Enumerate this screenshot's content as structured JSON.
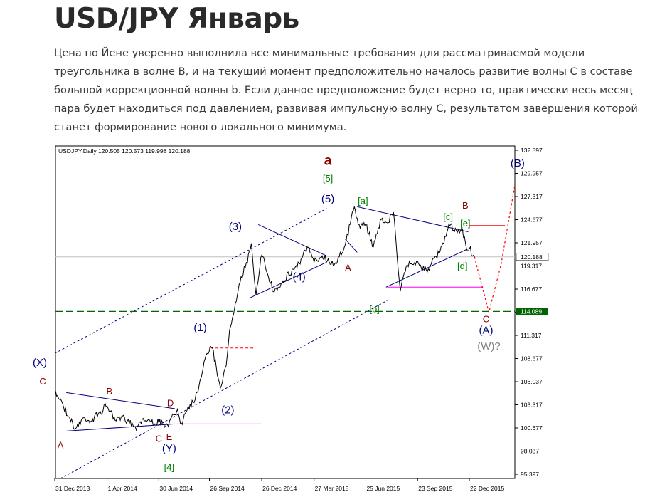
{
  "article": {
    "title": "USD/JPY Январь",
    "paragraph": "Цена по Йене уверенно выполнила все минимальные требования для рассматриваемой модели треугольника в волне В, и на текущий момент предположительно началось развитие волны С в составе большой коррекционной волны b. Если данное предположение будет верно то, практически весь месяц пара будет находиться под давлением, развивая импульсную волну С, результатом завершения которой станет формирование нового локального минимума."
  },
  "chart_data": {
    "type": "line",
    "header": "USDJPY,Daily  120.505 120.573 119.998 120.188",
    "y_ticks": [
      "132.597",
      "129.957",
      "127.317",
      "124.677",
      "121.957",
      "119.317",
      "116.677",
      "114.037",
      "111.317",
      "108.677",
      "106.037",
      "103.317",
      "100.677",
      "98.037",
      "95.397"
    ],
    "ylim": [
      95.397,
      132.597
    ],
    "x_ticks": [
      "31 Dec 2013",
      "1 Apr 2014",
      "30 Jun 2014",
      "26 Sep 2014",
      "26 Dec 2014",
      "27 Mar 2015",
      "25 Jun 2015",
      "23 Sep 2015",
      "22 Dec 2015"
    ],
    "last_price": {
      "label": "120.188",
      "value": 120.188
    },
    "support": {
      "label": "114.089",
      "value": 114.089,
      "color": "#006400"
    },
    "series": [
      {
        "values": [
          {
            "x": "31 Dec 2013",
            "y": 105.0
          },
          {
            "x": "10 Jan 2014",
            "y": 104.3
          },
          {
            "x": "24 Jan 2014",
            "y": 102.3
          },
          {
            "x": "5 Feb 2014",
            "y": 101.0
          },
          {
            "x": "20 Feb 2014",
            "y": 102.2
          },
          {
            "x": "5 Mar 2014",
            "y": 101.8
          },
          {
            "x": "20 Mar 2014",
            "y": 102.9
          },
          {
            "x": "1 Apr 2014",
            "y": 103.5
          },
          {
            "x": "15 Apr 2014",
            "y": 101.9
          },
          {
            "x": "1 May 2014",
            "y": 102.3
          },
          {
            "x": "20 May 2014",
            "y": 101.2
          },
          {
            "x": "1 Jun 2014",
            "y": 102.0
          },
          {
            "x": "15 Jun 2014",
            "y": 101.8
          },
          {
            "x": "30 Jun 2014",
            "y": 101.6
          },
          {
            "x": "15 Jul 2014",
            "y": 101.4
          },
          {
            "x": "31 Jul 2014",
            "y": 102.9
          },
          {
            "x": "8 Aug 2014",
            "y": 101.6
          },
          {
            "x": "20 Aug 2014",
            "y": 103.5
          },
          {
            "x": "1 Sep 2014",
            "y": 104.2
          },
          {
            "x": "10 Sep 2014",
            "y": 106.5
          },
          {
            "x": "20 Sep 2014",
            "y": 109.2
          },
          {
            "x": "1 Oct 2014",
            "y": 110.0
          },
          {
            "x": "15 Oct 2014",
            "y": 105.5
          },
          {
            "x": "25 Oct 2014",
            "y": 108.0
          },
          {
            "x": "31 Oct 2014",
            "y": 112.0
          },
          {
            "x": "10 Nov 2014",
            "y": 115.0
          },
          {
            "x": "20 Nov 2014",
            "y": 118.0
          },
          {
            "x": "1 Dec 2014",
            "y": 119.5
          },
          {
            "x": "8 Dec 2014",
            "y": 121.7
          },
          {
            "x": "16 Dec 2014",
            "y": 115.9
          },
          {
            "x": "26 Dec 2014",
            "y": 120.4
          },
          {
            "x": "15 Jan 2015",
            "y": 116.3
          },
          {
            "x": "1 Feb 2015",
            "y": 117.5
          },
          {
            "x": "1 Mar 2015",
            "y": 119.5
          },
          {
            "x": "15 Mar 2015",
            "y": 121.3
          },
          {
            "x": "27 Mar 2015",
            "y": 119.6
          },
          {
            "x": "10 Apr 2015",
            "y": 120.3
          },
          {
            "x": "1 May 2015",
            "y": 119.3
          },
          {
            "x": "20 May 2015",
            "y": 121.5
          },
          {
            "x": "5 Jun 2015",
            "y": 125.8
          },
          {
            "x": "15 Jun 2015",
            "y": 123.4
          },
          {
            "x": "25 Jun 2015",
            "y": 123.9
          },
          {
            "x": "8 Jul 2015",
            "y": 121.3
          },
          {
            "x": "20 Jul 2015",
            "y": 124.3
          },
          {
            "x": "1 Aug 2015",
            "y": 124.0
          },
          {
            "x": "12 Aug 2015",
            "y": 125.2
          },
          {
            "x": "24 Aug 2015",
            "y": 116.4
          },
          {
            "x": "5 Sep 2015",
            "y": 119.3
          },
          {
            "x": "23 Sep 2015",
            "y": 119.7
          },
          {
            "x": "5 Oct 2015",
            "y": 118.6
          },
          {
            "x": "15 Oct 2015",
            "y": 119.2
          },
          {
            "x": "1 Nov 2015",
            "y": 120.8
          },
          {
            "x": "18 Nov 2015",
            "y": 123.7
          },
          {
            "x": "1 Dec 2015",
            "y": 122.9
          },
          {
            "x": "10 Dec 2015",
            "y": 123.3
          },
          {
            "x": "17 Dec 2015",
            "y": 121.1
          },
          {
            "x": "22 Dec 2015",
            "y": 121.1
          },
          {
            "x": "31 Dec 2015",
            "y": 120.2
          }
        ]
      }
    ],
    "wave_labels": [
      {
        "text": "a",
        "color": "#8b0000",
        "bold": true,
        "x": "20 Apr 2015",
        "y": 130.5
      },
      {
        "text": "[5]",
        "color": "#008000",
        "x": "20 Apr 2015",
        "y": 128.6
      },
      {
        "text": "(5)",
        "color": "#000080",
        "x": "20 Apr 2015",
        "y": 126.3
      },
      {
        "text": "[a]",
        "color": "#008000",
        "x": "20 Jun 2015",
        "y": 126.1
      },
      {
        "text": "[c]",
        "color": "#008000",
        "x": "15 Nov 2015",
        "y": 124.3
      },
      {
        "text": "B",
        "color": "#8b0000",
        "x": "15 Dec 2015",
        "y": 125.6
      },
      {
        "text": "[e]",
        "color": "#008000",
        "x": "15 Dec 2015",
        "y": 123.6
      },
      {
        "text": "[d]",
        "color": "#008000",
        "x": "10 Dec 2015",
        "y": 118.8
      },
      {
        "text": "A",
        "color": "#8b0000",
        "x": "25 May 2015",
        "y": 118.6
      },
      {
        "text": "[b]",
        "color": "#008000",
        "x": "10 Jul 2015",
        "y": 114.0
      },
      {
        "text": "C",
        "color": "#8b0000",
        "x": "20 Jan 2016",
        "y": 112.9
      },
      {
        "text": "(A)",
        "color": "#000080",
        "x": "20 Jan 2016",
        "y": 111.6
      },
      {
        "text": "(W)?",
        "color": "#808080",
        "x": "25 Jan 2016",
        "y": 109.8
      },
      {
        "text": "(B)",
        "color": "#000080",
        "x": "15 Mar 2016",
        "y": 130.3
      },
      {
        "text": "(3)",
        "color": "#000080",
        "x": "10 Nov 2014",
        "y": 123.2
      },
      {
        "text": "(4)",
        "color": "#000080",
        "x": "1 Mar 2015",
        "y": 117.6
      },
      {
        "text": "(1)",
        "color": "#000080",
        "x": "10 Sep 2014",
        "y": 111.9
      },
      {
        "text": "(2)",
        "color": "#000080",
        "x": "28 Oct 2014",
        "y": 102.7
      },
      {
        "text": "(X)",
        "color": "#000080",
        "x": "5 Dec 2013",
        "y": 108.0
      },
      {
        "text": "C",
        "color": "#8b0000",
        "x": "10 Dec 2013",
        "y": 105.9
      },
      {
        "text": "B",
        "color": "#8b0000",
        "x": "5 Apr 2014",
        "y": 104.8
      },
      {
        "text": "D",
        "color": "#8b0000",
        "x": "20 Jul 2014",
        "y": 103.5
      },
      {
        "text": "A",
        "color": "#8b0000",
        "x": "10 Jan 2014",
        "y": 98.8
      },
      {
        "text": "C",
        "color": "#8b0000",
        "x": "30 Jun 2014",
        "y": 99.5
      },
      {
        "text": "E",
        "color": "#8b0000",
        "x": "18 Jul 2014",
        "y": 99.7
      },
      {
        "text": "(Y)",
        "color": "#000080",
        "x": "18 Jul 2014",
        "y": 98.4
      },
      {
        "text": "[4]",
        "color": "#008000",
        "x": "18 Jul 2014",
        "y": 96.3
      }
    ],
    "lines": [
      {
        "style": "channel",
        "color": "#000080",
        "dashed": true,
        "points": [
          {
            "x": "31 Dec 2013",
            "y": 109.4
          },
          {
            "x": "18 Apr 2015",
            "y": 125.6
          }
        ]
      },
      {
        "style": "channel",
        "color": "#000080",
        "dashed": true,
        "points": [
          {
            "x": "10 Jan 2014",
            "y": 95.4
          },
          {
            "x": "1 Aug 2015",
            "y": 115.3
          }
        ]
      },
      {
        "style": "solid",
        "color": "#000080",
        "points": [
          {
            "x": "20 Jan 2014",
            "y": 105.0
          },
          {
            "x": "28 Jul 2014",
            "y": 103.2
          }
        ]
      },
      {
        "style": "solid",
        "color": "#000080",
        "points": [
          {
            "x": "20 Jan 2014",
            "y": 100.7
          },
          {
            "x": "28 Jul 2014",
            "y": 101.5
          }
        ]
      },
      {
        "style": "solid",
        "color": "#000080",
        "points": [
          {
            "x": "20 Dec 2014",
            "y": 123.8
          },
          {
            "x": "18 Apr 2015",
            "y": 120.3
          }
        ]
      },
      {
        "style": "solid",
        "color": "#000080",
        "points": [
          {
            "x": "5 Dec 2014",
            "y": 115.6
          },
          {
            "x": "18 Apr 2015",
            "y": 119.6
          }
        ]
      },
      {
        "style": "solid",
        "color": "#000080",
        "points": [
          {
            "x": "10 Jun 2015",
            "y": 125.8
          },
          {
            "x": "20 Dec 2015",
            "y": 123.0
          }
        ]
      },
      {
        "style": "solid",
        "color": "#000080",
        "points": [
          {
            "x": "30 Jul 2015",
            "y": 116.8
          },
          {
            "x": "20 Dec 2015",
            "y": 121.1
          }
        ]
      },
      {
        "style": "solid",
        "color": "#000080",
        "points": [
          {
            "x": "20 May 2015",
            "y": 122.2
          },
          {
            "x": "10 Jun 2015",
            "y": 120.7
          }
        ]
      },
      {
        "style": "dashed",
        "color": "#ff0000",
        "points": [
          {
            "x": "28 Sep 2014",
            "y": 110.0
          },
          {
            "x": "12 Dec 2014",
            "y": 110.0
          }
        ]
      },
      {
        "style": "solid",
        "color": "#ff0000",
        "points": [
          {
            "x": "22 Dec 2015",
            "y": 123.7
          },
          {
            "x": "22 Feb 2016",
            "y": 123.7
          }
        ]
      },
      {
        "style": "solid",
        "color": "#ff00ff",
        "points": [
          {
            "x": "31 Jul 2014",
            "y": 101.5
          },
          {
            "x": "25 Dec 2014",
            "y": 101.5
          }
        ]
      },
      {
        "style": "solid",
        "color": "#ff00ff",
        "points": [
          {
            "x": "1 Aug 2015",
            "y": 116.8
          },
          {
            "x": "15 Jan 2016",
            "y": 116.8
          }
        ]
      },
      {
        "style": "dotted",
        "color": "#ff0000",
        "points": [
          {
            "x": "31 Dec 2015",
            "y": 120.2
          },
          {
            "x": "5 Jan 2016",
            "y": 118.9
          },
          {
            "x": "25 Jan 2016",
            "y": 114.0
          },
          {
            "x": "15 Feb 2016",
            "y": 119.3
          },
          {
            "x": "12 Mar 2016",
            "y": 128.9
          }
        ]
      }
    ]
  }
}
